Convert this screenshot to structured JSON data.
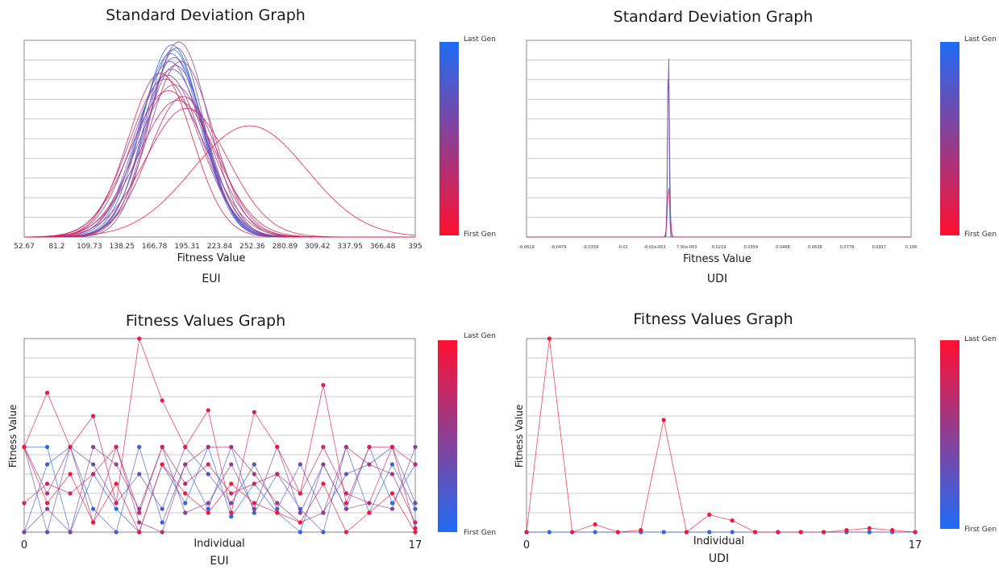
{
  "chart_data": [
    {
      "type": "line",
      "title": "Standard Deviation Graph",
      "xlabel": "Fitness Value",
      "caption": "EUI",
      "x_ticks": [
        "52.67",
        "81.2",
        "109.73",
        "138.25",
        "166.78",
        "195.31",
        "223.84",
        "252.36",
        "280.89",
        "309.42",
        "337.95",
        "366.48",
        "395"
      ],
      "xlim": [
        52.67,
        395
      ],
      "colorbar": {
        "top": "Last Gen",
        "bottom": "First Gen",
        "top_color": "#1e6cf5",
        "bottom_color": "#ff1030"
      },
      "series": [
        {
          "mean": 182,
          "sd": 26,
          "peak": 0.985,
          "gen": 0.95
        },
        {
          "mean": 183,
          "sd": 25,
          "peak": 0.96,
          "gen": 0.9
        },
        {
          "mean": 181,
          "sd": 27,
          "peak": 0.94,
          "gen": 0.85
        },
        {
          "mean": 184,
          "sd": 26,
          "peak": 0.92,
          "gen": 0.8
        },
        {
          "mean": 180,
          "sd": 28,
          "peak": 0.9,
          "gen": 0.75
        },
        {
          "mean": 185,
          "sd": 27,
          "peak": 0.88,
          "gen": 0.7
        },
        {
          "mean": 186,
          "sd": 24,
          "peak": 0.97,
          "gen": 0.65
        },
        {
          "mean": 182,
          "sd": 29,
          "peak": 0.86,
          "gen": 0.6
        },
        {
          "mean": 178,
          "sd": 30,
          "peak": 0.83,
          "gen": 0.55
        },
        {
          "mean": 188,
          "sd": 26,
          "peak": 1.0,
          "gen": 0.5
        },
        {
          "mean": 176,
          "sd": 31,
          "peak": 0.81,
          "gen": 0.45
        },
        {
          "mean": 190,
          "sd": 28,
          "peak": 0.9,
          "gen": 0.4
        },
        {
          "mean": 184,
          "sd": 32,
          "peak": 0.78,
          "gen": 0.35
        },
        {
          "mean": 179,
          "sd": 33,
          "peak": 0.75,
          "gen": 0.3
        },
        {
          "mean": 192,
          "sd": 30,
          "peak": 0.72,
          "gen": 0.25
        },
        {
          "mean": 187,
          "sd": 34,
          "peak": 0.7,
          "gen": 0.2
        },
        {
          "mean": 195,
          "sd": 36,
          "peak": 0.66,
          "gen": 0.15
        },
        {
          "mean": 172,
          "sd": 28,
          "peak": 0.84,
          "gen": 0.1
        },
        {
          "mean": 250,
          "sd": 50,
          "peak": 0.57,
          "gen": 0.05
        }
      ]
    },
    {
      "type": "line",
      "title": "Standard Deviation Graph",
      "xlabel": "Fitness Value",
      "caption": "UDI",
      "x_ticks": [
        "-0.0619",
        "-0.0479",
        "-0.0339",
        "-0.02",
        "-6.01e-003",
        "7.91e-003",
        "0.0219",
        "0.0359",
        "0.0498",
        "0.0638",
        "0.0778",
        "0.0917",
        "0.106"
      ],
      "xlim": [
        -0.0619,
        0.106
      ],
      "colorbar": {
        "top": "Last Gen",
        "bottom": "First Gen",
        "top_color": "#1e6cf5",
        "bottom_color": "#ff1030"
      },
      "series": [
        {
          "mean": 0.0,
          "sd": 0.0003,
          "peak": 1.0,
          "gen": 0.9
        },
        {
          "mean": 0.0001,
          "sd": 0.0004,
          "peak": 0.96,
          "gen": 0.6
        },
        {
          "mean": 0.0002,
          "sd": 0.0006,
          "peak": 0.25,
          "gen": 0.2
        }
      ]
    },
    {
      "type": "line",
      "title": "Fitness Values Graph",
      "xlabel": "Individual",
      "ylabel": "Fitness Value",
      "caption": "EUI",
      "x_ticks": [
        "0",
        "17"
      ],
      "xlim": [
        0,
        17
      ],
      "ylim": [
        0,
        1
      ],
      "colorbar": {
        "top": "Last Gen",
        "bottom": "First Gen",
        "top_color": "#ff1030",
        "bottom_color": "#1e6cf5"
      },
      "series": [
        {
          "gen": 0.05,
          "values": [
            0.44,
            0.44,
            0.0,
            0.3,
            0.12,
            0.0,
            0.35,
            0.15,
            0.44,
            0.08,
            0.25,
            0.1,
            0.0,
            0.35,
            0.12,
            0.44,
            0.15,
            0.35
          ]
        },
        {
          "gen": 0.15,
          "values": [
            0.0,
            0.35,
            0.44,
            0.12,
            0.0,
            0.44,
            0.05,
            0.35,
            0.12,
            0.44,
            0.1,
            0.3,
            0.12,
            0.0,
            0.44,
            0.1,
            0.35,
            0.12
          ]
        },
        {
          "gen": 0.3,
          "values": [
            0.44,
            0.0,
            0.44,
            0.35,
            0.15,
            0.3,
            0.12,
            0.44,
            0.3,
            0.15,
            0.35,
            0.12,
            0.35,
            0.1,
            0.3,
            0.35,
            0.44,
            0.15
          ]
        },
        {
          "gen": 0.45,
          "values": [
            0.0,
            0.12,
            0.0,
            0.44,
            0.35,
            0.12,
            0.44,
            0.1,
            0.15,
            0.35,
            0.12,
            0.44,
            0.1,
            0.35,
            0.12,
            0.15,
            0.12,
            0.44
          ]
        },
        {
          "gen": 0.6,
          "values": [
            0.44,
            0.2,
            0.44,
            0.05,
            0.44,
            0.05,
            0.0,
            0.35,
            0.44,
            0.44,
            0.3,
            0.15,
            0.05,
            0.1,
            0.44,
            0.35,
            0.3,
            0.05
          ]
        },
        {
          "gen": 0.75,
          "values": [
            0.15,
            0.25,
            0.2,
            0.3,
            0.44,
            0.1,
            0.44,
            0.25,
            0.35,
            0.2,
            0.25,
            0.3,
            0.2,
            0.44,
            0.2,
            0.15,
            0.44,
            0.35
          ]
        },
        {
          "gen": 0.85,
          "values": [
            0.44,
            0.72,
            0.44,
            0.6,
            0.15,
            1.0,
            0.68,
            0.44,
            0.63,
            0.1,
            0.62,
            0.44,
            0.2,
            0.76,
            0.15,
            0.44,
            0.44,
            0.02
          ]
        },
        {
          "gen": 0.95,
          "values": [
            0.44,
            0.15,
            0.3,
            0.05,
            0.25,
            0.0,
            0.35,
            0.2,
            0.1,
            0.25,
            0.15,
            0.1,
            0.05,
            0.25,
            0.0,
            0.1,
            0.2,
            0.0
          ]
        }
      ]
    },
    {
      "type": "line",
      "title": "Fitness Values Graph",
      "xlabel": "Individual",
      "ylabel": "Fitness Value",
      "caption": "UDI",
      "x_ticks": [
        "0",
        "17"
      ],
      "xlim": [
        0,
        17
      ],
      "ylim": [
        0,
        1
      ],
      "colorbar": {
        "top": "Last Gen",
        "bottom": "First Gen",
        "top_color": "#ff1030",
        "bottom_color": "#1e6cf5"
      },
      "series": [
        {
          "gen": 0.1,
          "values": [
            0,
            0,
            0,
            0,
            0,
            0,
            0,
            0,
            0,
            0,
            0,
            0,
            0,
            0,
            0,
            0,
            0,
            0
          ]
        },
        {
          "gen": 0.95,
          "values": [
            0,
            1.0,
            0,
            0.04,
            0,
            0.01,
            0.58,
            0,
            0.09,
            0.06,
            0,
            0,
            0,
            0,
            0.01,
            0.02,
            0.01,
            0
          ]
        }
      ]
    }
  ]
}
